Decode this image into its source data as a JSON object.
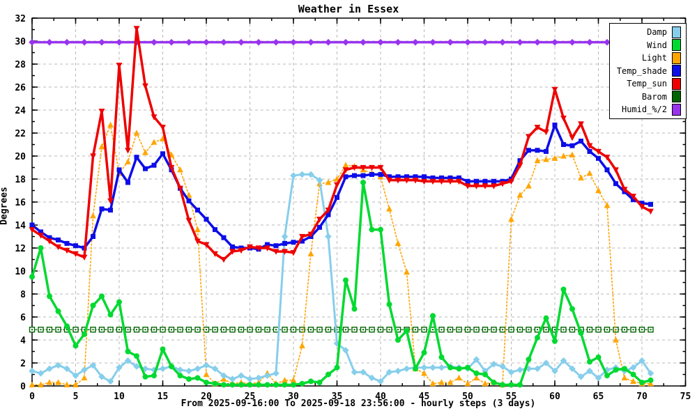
{
  "chart_data": {
    "type": "line",
    "title": "Weather in Essex",
    "ylabel": "Degrees",
    "xlabel": "From 2025-09-16:00 To 2025-09-18 23:56:00 - hourly steps (3 days)",
    "xlim": [
      0,
      75
    ],
    "ylim": [
      0,
      32
    ],
    "x_tick_step": 5,
    "x_minor_step": 2.5,
    "y_tick_step": 2,
    "y_minor_step": 1,
    "grid": true,
    "legend_position": "top-right-inside",
    "background": "#ffffff",
    "grid_color": "#b8b8b8",
    "axis_color": "#000000",
    "x_start": 0,
    "x_step": 1,
    "x_count": 72,
    "series": [
      {
        "name": "Damp",
        "color": "#87CEEB",
        "marker": "diamond",
        "line": "solid",
        "width": 3,
        "zorder": 4,
        "values": [
          1.3,
          1.1,
          1.5,
          1.8,
          1.5,
          0.9,
          1.4,
          1.8,
          0.8,
          0.4,
          1.6,
          2.2,
          1.7,
          1.5,
          1.4,
          1.5,
          1.7,
          1.4,
          1.3,
          1.5,
          1.8,
          1.5,
          0.9,
          0.6,
          0.9,
          0.6,
          0.7,
          0.9,
          1.1,
          13.0,
          18.3,
          18.4,
          18.4,
          17.9,
          13.0,
          3.7,
          3.1,
          1.2,
          1.2,
          0.7,
          0.4,
          1.2,
          1.3,
          1.5,
          1.6,
          1.6,
          1.6,
          1.6,
          1.7,
          1.6,
          1.5,
          2.3,
          1.3,
          1.9,
          1.7,
          1.2,
          1.4,
          1.5,
          1.5,
          2.0,
          1.3,
          2.2,
          1.5,
          0.8,
          1.3,
          0.7,
          1.4,
          1.6,
          1.3,
          1.6,
          2.2,
          1.1
        ]
      },
      {
        "name": "Wind",
        "color": "#00D930",
        "marker": "circle",
        "line": "solid",
        "width": 3.5,
        "zorder": 5,
        "values": [
          9.5,
          12.0,
          7.8,
          6.5,
          5.2,
          3.5,
          4.5,
          7.0,
          7.8,
          6.2,
          7.3,
          3.0,
          2.6,
          0.8,
          0.9,
          3.2,
          1.7,
          0.9,
          0.6,
          0.7,
          0.3,
          0.2,
          0.1,
          0.1,
          0.1,
          0.1,
          0.1,
          0.1,
          0.1,
          0.1,
          0.1,
          0.2,
          0.4,
          0.3,
          1.0,
          1.6,
          9.2,
          6.7,
          17.7,
          13.6,
          13.6,
          7.1,
          4.0,
          4.8,
          1.5,
          2.9,
          6.1,
          2.5,
          1.6,
          1.5,
          1.6,
          1.1,
          1.0,
          0.3,
          0.1,
          0.1,
          0.1,
          2.3,
          4.2,
          5.9,
          3.9,
          8.4,
          6.7,
          4.6,
          2.1,
          2.5,
          0.9,
          1.4,
          1.5,
          1.0,
          0.3,
          0.5
        ]
      },
      {
        "name": "Light",
        "color": "#FFA500",
        "marker": "triangle",
        "line": "dotted",
        "width": 1.6,
        "zorder": 3,
        "values": [
          0.1,
          0.1,
          0.3,
          0.3,
          0.1,
          0.1,
          0.7,
          14.8,
          20.8,
          22.7,
          18.5,
          19.5,
          22.0,
          20.3,
          21.2,
          21.5,
          20.1,
          18.8,
          16.6,
          13.6,
          1.0,
          0.2,
          0.6,
          0.2,
          0.3,
          0.2,
          0.3,
          1.1,
          0.2,
          0.5,
          0.5,
          3.5,
          11.5,
          17.6,
          17.7,
          18.0,
          19.2,
          19.1,
          18.8,
          18.5,
          18.2,
          15.4,
          12.4,
          9.9,
          1.5,
          1.1,
          0.2,
          0.3,
          0.3,
          0.7,
          0.2,
          0.7,
          0.2,
          0.3,
          0.1,
          14.5,
          16.6,
          17.4,
          19.6,
          19.7,
          19.8,
          20.0,
          20.1,
          18.1,
          18.5,
          17.0,
          15.7,
          4.0,
          0.7,
          0.4,
          0.2,
          0.2
        ]
      },
      {
        "name": "Temp_shade",
        "color": "#0D0DE8",
        "marker": "square",
        "line": "solid",
        "width": 3.5,
        "zorder": 6,
        "values": [
          14.0,
          13.4,
          12.9,
          12.7,
          12.4,
          12.2,
          12.0,
          13.0,
          15.4,
          15.3,
          18.8,
          17.7,
          19.9,
          18.9,
          19.2,
          20.2,
          18.8,
          17.2,
          16.1,
          15.3,
          14.5,
          13.6,
          12.9,
          12.1,
          12.0,
          12.0,
          11.9,
          12.3,
          12.2,
          12.4,
          12.5,
          12.6,
          13.0,
          13.8,
          14.9,
          16.4,
          18.2,
          18.3,
          18.3,
          18.4,
          18.4,
          18.2,
          18.2,
          18.2,
          18.2,
          18.2,
          18.1,
          18.1,
          18.1,
          18.1,
          17.8,
          17.8,
          17.8,
          17.8,
          17.8,
          18.0,
          19.6,
          20.5,
          20.5,
          20.4,
          22.7,
          21.0,
          20.9,
          21.3,
          20.4,
          19.8,
          18.8,
          17.6,
          16.9,
          16.2,
          15.9,
          15.8
        ]
      },
      {
        "name": "Temp_sun",
        "color": "#EE0000",
        "marker": "triangle-down",
        "line": "solid",
        "width": 3.5,
        "zorder": 7,
        "values": [
          13.6,
          13.1,
          12.6,
          12.1,
          11.8,
          11.5,
          11.2,
          20.0,
          23.9,
          16.1,
          27.9,
          20.5,
          31.1,
          26.1,
          23.4,
          22.5,
          19.0,
          17.2,
          14.4,
          12.6,
          12.3,
          11.5,
          11.0,
          11.7,
          11.8,
          12.1,
          12.0,
          12.0,
          11.7,
          11.7,
          11.6,
          13.0,
          13.2,
          14.5,
          15.3,
          17.5,
          18.8,
          19.0,
          19.0,
          19.0,
          19.0,
          17.9,
          17.9,
          17.9,
          17.9,
          17.8,
          17.8,
          17.8,
          17.8,
          17.8,
          17.4,
          17.4,
          17.4,
          17.4,
          17.6,
          17.8,
          19.2,
          21.7,
          22.5,
          22.1,
          25.8,
          23.3,
          21.6,
          22.8,
          20.9,
          20.4,
          19.9,
          18.8,
          17.1,
          16.5,
          15.6,
          15.2
        ]
      },
      {
        "name": "Barom",
        "color": "#006400",
        "marker": "open-square",
        "line": "dotted",
        "width": 1.4,
        "zorder": 2,
        "constant": 4.9,
        "marker_every": 1
      },
      {
        "name": "Humid_%/2",
        "color": "#9933EE",
        "marker": "diamond",
        "line": "solid",
        "width": 3.5,
        "zorder": 1,
        "constant": 29.9,
        "marker_every": 2
      }
    ]
  }
}
